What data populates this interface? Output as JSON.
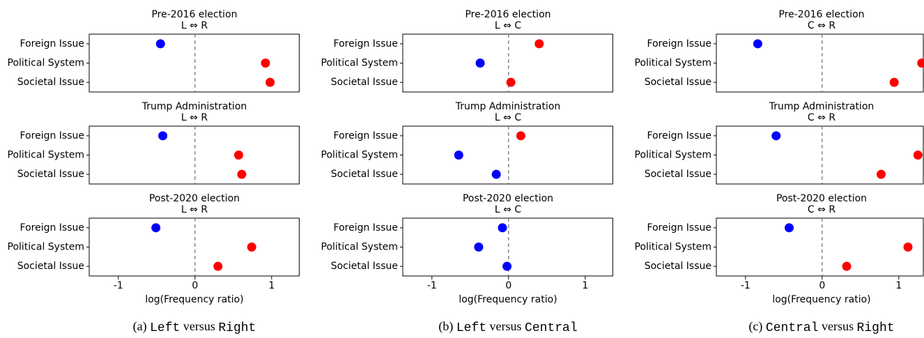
{
  "chart_data": [
    {
      "type": "dot",
      "title": "Pre-2016 election",
      "subtitle": "L ⇔ R",
      "categories": [
        "Foreign Issue",
        "Political System",
        "Societal Issue"
      ],
      "values": [
        -0.45,
        0.92,
        0.98
      ],
      "colors": [
        "#0000ff",
        "#ff0000",
        "#ff0000"
      ],
      "xlim": [
        -1.38,
        1.36
      ]
    },
    {
      "type": "dot",
      "title": "Pre-2016 election",
      "subtitle": "L ⇔ C",
      "categories": [
        "Foreign Issue",
        "Political System",
        "Societal Issue"
      ],
      "values": [
        0.4,
        -0.37,
        0.03
      ],
      "colors": [
        "#ff0000",
        "#0000ff",
        "#ff0000"
      ],
      "xlim": [
        -1.38,
        1.36
      ]
    },
    {
      "type": "dot",
      "title": "Pre-2016 election",
      "subtitle": "C ⇔ R",
      "categories": [
        "Foreign Issue",
        "Political System",
        "Societal Issue"
      ],
      "values": [
        -0.84,
        1.3,
        0.94
      ],
      "colors": [
        "#0000ff",
        "#ff0000",
        "#ff0000"
      ],
      "xlim": [
        -1.38,
        1.32
      ]
    },
    {
      "type": "dot",
      "title": "Trump Administration",
      "subtitle": "L ⇔ R",
      "categories": [
        "Foreign Issue",
        "Political System",
        "Societal Issue"
      ],
      "values": [
        -0.42,
        0.57,
        0.61
      ],
      "colors": [
        "#0000ff",
        "#ff0000",
        "#ff0000"
      ],
      "xlim": [
        -1.38,
        1.36
      ]
    },
    {
      "type": "dot",
      "title": "Trump Administration",
      "subtitle": "L ⇔ C",
      "categories": [
        "Foreign Issue",
        "Political System",
        "Societal Issue"
      ],
      "values": [
        0.16,
        -0.65,
        -0.16
      ],
      "colors": [
        "#ff0000",
        "#0000ff",
        "#0000ff"
      ],
      "xlim": [
        -1.38,
        1.36
      ]
    },
    {
      "type": "dot",
      "title": "Trump Administration",
      "subtitle": "C ⇔ R",
      "categories": [
        "Foreign Issue",
        "Political System",
        "Societal Issue"
      ],
      "values": [
        -0.6,
        1.25,
        0.77
      ],
      "colors": [
        "#0000ff",
        "#ff0000",
        "#ff0000"
      ],
      "xlim": [
        -1.38,
        1.32
      ]
    },
    {
      "type": "dot",
      "title": "Post-2020 election",
      "subtitle": "L ⇔ R",
      "categories": [
        "Foreign Issue",
        "Political System",
        "Societal Issue"
      ],
      "values": [
        -0.51,
        0.74,
        0.3
      ],
      "colors": [
        "#0000ff",
        "#ff0000",
        "#ff0000"
      ],
      "xlim": [
        -1.38,
        1.36
      ],
      "xticks": [
        {
          "value": -1,
          "label": "-1"
        },
        0,
        1
      ],
      "xlabel": "log(Frequency ratio)"
    },
    {
      "type": "dot",
      "title": "Post-2020 election",
      "subtitle": "L ⇔ C",
      "categories": [
        "Foreign Issue",
        "Political System",
        "Societal Issue"
      ],
      "values": [
        -0.08,
        -0.39,
        -0.02
      ],
      "colors": [
        "#0000ff",
        "#0000ff",
        "#0000ff"
      ],
      "xlim": [
        -1.38,
        1.36
      ],
      "xticks": [
        {
          "value": -1,
          "label": "-1"
        },
        0,
        1
      ],
      "xlabel": "log(Frequency ratio)"
    },
    {
      "type": "dot",
      "title": "Post-2020 election",
      "subtitle": "C ⇔ R",
      "categories": [
        "Foreign Issue",
        "Political System",
        "Societal Issue"
      ],
      "values": [
        -0.43,
        1.12,
        0.32
      ],
      "colors": [
        "#0000ff",
        "#ff0000",
        "#ff0000"
      ],
      "xlim": [
        -1.38,
        1.32
      ],
      "xticks": [
        {
          "value": -1,
          "label": "-1"
        },
        0,
        1
      ],
      "xlabel": "log(Frequency ratio)"
    }
  ],
  "captions": [
    {
      "label": "(a)",
      "left": "Left",
      "versus": "versus",
      "right": "Right"
    },
    {
      "label": "(b)",
      "left": "Left",
      "versus": "versus",
      "right": "Central"
    },
    {
      "label": "(c)",
      "left": "Central",
      "versus": "versus",
      "right": "Right"
    }
  ]
}
